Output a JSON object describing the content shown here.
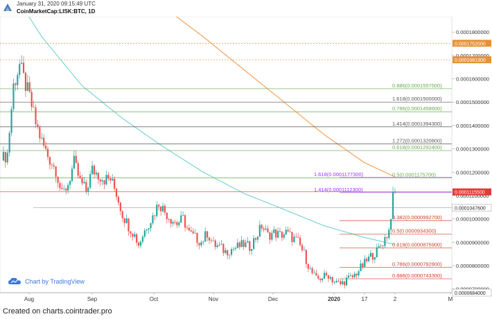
{
  "header": {
    "timestamp": "January 31, 2020 09:15:49 UTC",
    "symbol": "CoinMarketCap:LISK:BTC, 1D"
  },
  "footer": {
    "text": "Created on charts.cointrader.pro"
  },
  "badge": {
    "label": "Chart by TradingView",
    "icon": "tradingview-cloud-icon"
  },
  "colors": {
    "up": "#26a69a",
    "down": "#ef5350",
    "ma_slow": "#7fd3d3",
    "ma_fast": "#f4a460",
    "fib_green": "#6aa84f",
    "fib_orange": "#e69138",
    "fib_red": "#cc4125",
    "fib_purple": "#9933ff",
    "fib_gray": "#555555"
  },
  "chart_data": {
    "type": "candlestick",
    "y_axis": {
      "min": 6.84e-05,
      "max": 0.0001866,
      "ticks": [
        "0.0001800000",
        "0.0001700000",
        "0.0001600000",
        "0.0001500000",
        "0.0001400000",
        "0.0001300000",
        "0.0001200000",
        "0.0001100000",
        "0.0001000000",
        "0.0000900000",
        "0.0000800000",
        "0.0000700000"
      ]
    },
    "x_axis": {
      "tick_labels": [
        "Aug",
        "Sep",
        "Oct",
        "Nov",
        "Dec",
        "2020",
        "17",
        "2",
        "M"
      ]
    },
    "price_markers": [
      {
        "label": "0.0001752000",
        "value": 0.0001752,
        "color": "#e69138",
        "style": "dotted"
      },
      {
        "label": "0.0001681300",
        "value": 0.00016813,
        "color": "#e69138",
        "style": "dotted"
      },
      {
        "label": "0.0001115500",
        "value": 0.00011155,
        "color": "#e53935",
        "style": "solid"
      },
      {
        "label": "0.0001047600",
        "value": 0.00010476,
        "color": "#9e9e9e",
        "style": "solid"
      },
      {
        "label": "0.0000684000",
        "value": 6.84e-05,
        "color": "#9e9e9e",
        "style": "solid"
      }
    ],
    "fib_levels": [
      {
        "label": "0.886(0.0001557500)",
        "value": 0.00015575,
        "color": "#6aa84f"
      },
      {
        "label": "1.618(0.0001500000)",
        "value": 0.00015,
        "color": "#555555"
      },
      {
        "label": "0.786(0.0001458600)",
        "value": 0.00014586,
        "color": "#6aa84f"
      },
      {
        "label": "1.414(0.0001394300)",
        "value": 0.00013943,
        "color": "#555555"
      },
      {
        "label": "1.272(0.0001320800)",
        "value": 0.00013208,
        "color": "#555555"
      },
      {
        "label": "0.618(0.0001292400)",
        "value": 0.00012924,
        "color": "#6aa84f"
      },
      {
        "label": "1.618(0.0001177300)",
        "value": 0.00011773,
        "color": "#9933ff"
      },
      {
        "label": "0.5(0.0001175700)",
        "value": 0.00011757,
        "color": "#6aa84f"
      },
      {
        "label": "1.414(0.0001112300)",
        "value": 0.00011123,
        "color": "#9933ff"
      },
      {
        "label": "0.382(0.0000992700)",
        "value": 9.927e-05,
        "color": "#cc4125"
      },
      {
        "label": "0.5(0.0000934300)",
        "value": 9.343e-05,
        "color": "#cc4125"
      },
      {
        "label": "0.618(0.0000875900)",
        "value": 8.759e-05,
        "color": "#cc4125"
      },
      {
        "label": "0.786(0.0000792800)",
        "value": 7.928e-05,
        "color": "#cc4125"
      },
      {
        "label": "0.886(0.0000743300)",
        "value": 7.433e-05,
        "color": "#cc4125"
      }
    ],
    "close_path": [
      [
        0,
        0.000125
      ],
      [
        3,
        0.000128
      ],
      [
        6,
        0.000157
      ],
      [
        9,
        0.000166
      ],
      [
        11,
        0.00016
      ],
      [
        14,
        0.000152
      ],
      [
        17,
        0.000141
      ],
      [
        20,
        0.000133
      ],
      [
        23,
        0.000127
      ],
      [
        27,
        0.000121
      ],
      [
        30,
        0.00011
      ],
      [
        33,
        0.000115
      ],
      [
        36,
        0.000124
      ],
      [
        39,
        0.000116
      ],
      [
        42,
        0.000112
      ],
      [
        45,
        0.000121
      ],
      [
        48,
        0.000119
      ],
      [
        51,
        0.000117
      ],
      [
        54,
        0.000117
      ],
      [
        57,
        0.000111
      ],
      [
        60,
        0.000102
      ],
      [
        63,
        9.7e-05
      ],
      [
        66,
        9.3e-05
      ],
      [
        68,
        8.9e-05
      ],
      [
        72,
        9.7e-05
      ],
      [
        75,
        0.000101
      ],
      [
        78,
        0.000107
      ],
      [
        81,
        0.000103
      ],
      [
        84,
        0.0001
      ],
      [
        87,
        9.8e-05
      ],
      [
        90,
        0.0001
      ],
      [
        93,
        9.4e-05
      ],
      [
        96,
        9.2e-05
      ],
      [
        99,
        9e-05
      ],
      [
        102,
        9.4e-05
      ],
      [
        105,
        8.9e-05
      ],
      [
        108,
        8.8e-05
      ],
      [
        111,
        8.6e-05
      ],
      [
        114,
        8.7e-05
      ],
      [
        117,
        8.8e-05
      ],
      [
        120,
        8.9e-05
      ],
      [
        123,
        8.8e-05
      ],
      [
        126,
        9.2e-05
      ],
      [
        129,
        9.7e-05
      ],
      [
        132,
        9.3e-05
      ],
      [
        135,
        9.4e-05
      ],
      [
        138,
        9.3e-05
      ],
      [
        141,
        9.4e-05
      ],
      [
        144,
        9.2e-05
      ],
      [
        147,
        9e-05
      ],
      [
        150,
        8.5e-05
      ],
      [
        153,
        7.8e-05
      ],
      [
        156,
        7.4e-05
      ],
      [
        159,
        7.5e-05
      ],
      [
        162,
        7.6e-05
      ],
      [
        165,
        7.3e-05
      ],
      [
        168,
        7.2e-05
      ],
      [
        171,
        7.4e-05
      ],
      [
        174,
        7.5e-05
      ],
      [
        177,
        7.8e-05
      ],
      [
        180,
        8.1e-05
      ],
      [
        183,
        8.4e-05
      ],
      [
        186,
        8.6e-05
      ],
      [
        189,
        9e-05
      ],
      [
        192,
        9.5e-05
      ],
      [
        194,
        0.000109
      ],
      [
        195,
        0.000111
      ]
    ],
    "ma_slow_path": [
      [
        0,
        0.000205
      ],
      [
        20,
        0.000178
      ],
      [
        40,
        0.000157
      ],
      [
        60,
        0.000143
      ],
      [
        80,
        0.000131
      ],
      [
        100,
        0.00012
      ],
      [
        120,
        0.000111
      ],
      [
        140,
        0.000104
      ],
      [
        160,
        9.7e-05
      ],
      [
        180,
        9.2e-05
      ],
      [
        195,
        8.9e-05
      ]
    ],
    "ma_fast_path": [
      [
        80,
        0.000191
      ],
      [
        100,
        0.000178
      ],
      [
        120,
        0.000164
      ],
      [
        140,
        0.00015
      ],
      [
        160,
        0.000136
      ],
      [
        180,
        0.000124
      ],
      [
        195,
        0.000118
      ]
    ]
  }
}
